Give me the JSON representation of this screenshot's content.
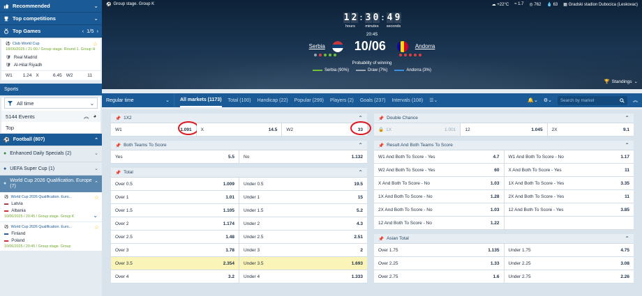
{
  "sidebar": {
    "recommended": "Recommended",
    "top_competitions": "Top competitions",
    "top_games": "Top Games",
    "top_games_pager": "1/5",
    "featured": {
      "league": "Club World Cup",
      "date": "18/06/2025 / 21:00 / Group stage. Round 1. Group H",
      "team1": "Real Madrid",
      "team2": "Al-Hilal Riyadh",
      "odds": [
        {
          "label": "W1",
          "value": "1.24"
        },
        {
          "label": "X",
          "value": "6.45"
        },
        {
          "label": "W2",
          "value": "11"
        }
      ]
    },
    "sports": "Sports",
    "filter": "All time",
    "events": "5144 Events",
    "top": "Top",
    "items": [
      {
        "label": "Football (807)"
      },
      {
        "label": "Enhanced Daily Specials (2)"
      },
      {
        "label": "UEFA Super Cup (1)"
      },
      {
        "label": "World Cup 2026 Qualification. Europe (7)"
      }
    ],
    "matches": [
      {
        "league": "World Cup 2026 Qualification. Euro...",
        "team1": "Latvia",
        "team2": "Albania",
        "date": "10/06/2025 / 20:45 / Group stage. Group K"
      },
      {
        "league": "World Cup 2026 Qualification. Euro...",
        "team1": "Finland",
        "team2": "Poland",
        "date": "10/06/2025 / 20:45 / Group stage. Group"
      }
    ]
  },
  "hero": {
    "stage": "Group stage. Group K",
    "weather": {
      "temp": "+22°C",
      "wind": "1.7",
      "pressure": "762",
      "humidity": "63"
    },
    "venue": "Gradski stadion Dubocica (Leskovac)",
    "timer": {
      "hours": [
        "1",
        "2"
      ],
      "minutes": [
        "3",
        "0"
      ],
      "seconds": [
        "4",
        "9"
      ],
      "hours_label": "hours",
      "minutes_label": "minutes",
      "seconds_label": "seconds"
    },
    "kickoff": "20:45",
    "team1": "Serbia",
    "team2": "Andorra",
    "score": "10/06",
    "prob_title": "Probability of winning",
    "prob": [
      {
        "label": "Serbia (90%)",
        "color": "#6fbf3a"
      },
      {
        "label": "Draw (7%)",
        "color": "#9aa7b3"
      },
      {
        "label": "Andorra (3%)",
        "color": "#3b8fe0"
      }
    ],
    "standings": "Standings"
  },
  "nav": {
    "regular_time": "Regular time",
    "tabs": [
      "All markets (1173)",
      "Total (100)",
      "Handicap (22)",
      "Popular (299)",
      "Players (2)",
      "Goals (237)",
      "Intervals (108)"
    ],
    "search_placeholder": "Search by market"
  },
  "markets": {
    "x12": {
      "title": "1X2",
      "cells": [
        {
          "l": "W1",
          "v": "1.091"
        },
        {
          "l": "X",
          "v": "14.5"
        },
        {
          "l": "W2",
          "v": "33"
        }
      ]
    },
    "btts": {
      "title": "Both Teams To Score",
      "cells": [
        {
          "l": "Yes",
          "v": "5.5"
        },
        {
          "l": "No",
          "v": "1.132"
        }
      ]
    },
    "total": {
      "title": "Total",
      "rows": [
        [
          {
            "l": "Over 0.5",
            "v": "1.009"
          },
          {
            "l": "Under 0.5",
            "v": "19.5"
          }
        ],
        [
          {
            "l": "Over 1",
            "v": "1.01"
          },
          {
            "l": "Under 1",
            "v": "15"
          }
        ],
        [
          {
            "l": "Over 1.5",
            "v": "1.105"
          },
          {
            "l": "Under 1.5",
            "v": "5.2"
          }
        ],
        [
          {
            "l": "Over 2",
            "v": "1.174"
          },
          {
            "l": "Under 2",
            "v": "4.3"
          }
        ],
        [
          {
            "l": "Over 2.5",
            "v": "1.48"
          },
          {
            "l": "Under 2.5",
            "v": "2.51"
          }
        ],
        [
          {
            "l": "Over 3",
            "v": "1.78"
          },
          {
            "l": "Under 3",
            "v": "2"
          }
        ],
        [
          {
            "l": "Over 3.5",
            "v": "2.354"
          },
          {
            "l": "Under 3.5",
            "v": "1.693"
          }
        ],
        [
          {
            "l": "Over 4",
            "v": "3.2"
          },
          {
            "l": "Under 4",
            "v": "1.333"
          }
        ]
      ]
    },
    "double": {
      "title": "Double Chance",
      "cells": [
        {
          "l": "1X",
          "v": "1.001"
        },
        {
          "l": "12",
          "v": "1.045"
        },
        {
          "l": "2X",
          "v": "9.1"
        }
      ]
    },
    "rbtts": {
      "title": "Result And Both Teams To Score",
      "rows": [
        [
          {
            "l": "W1 And Both To Score - Yes",
            "v": "4.7"
          },
          {
            "l": "W1 And Both To Score - No",
            "v": "1.17"
          }
        ],
        [
          {
            "l": "W2 And Both To Score - Yes",
            "v": "60"
          },
          {
            "l": "X And Both To Score - Yes",
            "v": "11"
          }
        ],
        [
          {
            "l": "X And Both To Score - No",
            "v": "1.03"
          },
          {
            "l": "1X And Both To Score - Yes",
            "v": "3.35"
          }
        ],
        [
          {
            "l": "1X And Both To Score - No",
            "v": "1.28"
          },
          {
            "l": "2X And Both To Score - Yes",
            "v": "11"
          }
        ],
        [
          {
            "l": "2X And Both To Score - No",
            "v": "1.03"
          },
          {
            "l": "12 And Both To Score - Yes",
            "v": "3.85"
          }
        ],
        [
          {
            "l": "12 And Both To Score - No",
            "v": "1.22"
          },
          {
            "l": "",
            "v": ""
          }
        ]
      ]
    },
    "asian": {
      "title": "Asian Total",
      "rows": [
        [
          {
            "l": "Over 1.75",
            "v": "1.135"
          },
          {
            "l": "Under 1.75",
            "v": "4.75"
          }
        ],
        [
          {
            "l": "Over 2.25",
            "v": "1.33"
          },
          {
            "l": "Under 2.25",
            "v": "3.08"
          }
        ],
        [
          {
            "l": "Over 2.75",
            "v": "1.6"
          },
          {
            "l": "Under 2.75",
            "v": "2.26"
          }
        ]
      ]
    }
  }
}
